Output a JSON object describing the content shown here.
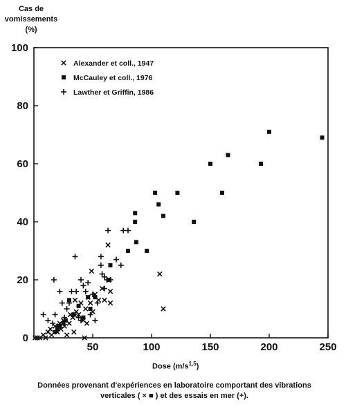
{
  "chart_data": {
    "type": "scatter",
    "ylabel_lines": [
      "Cas de",
      "vomissements",
      "(%)"
    ],
    "xlabel_main": "Dose (m/s",
    "xlabel_exp": "1,5",
    "xlabel_close": ")",
    "xlim": [
      0,
      250
    ],
    "ylim": [
      0,
      100
    ],
    "x_ticks": [
      "50",
      "100",
      "150",
      "200",
      "250"
    ],
    "y_ticks": [
      "0",
      "20",
      "40",
      "60",
      "80",
      "100"
    ],
    "legend_position": "top-left",
    "grid": false,
    "series": [
      {
        "name": "Alexander et coll., 1947",
        "marker": "x",
        "points": [
          [
            1,
            0
          ],
          [
            3,
            0
          ],
          [
            5,
            0
          ],
          [
            8,
            1
          ],
          [
            10,
            0
          ],
          [
            12,
            2
          ],
          [
            14,
            3
          ],
          [
            15,
            1
          ],
          [
            18,
            4
          ],
          [
            20,
            2
          ],
          [
            22,
            5
          ],
          [
            23,
            3
          ],
          [
            25,
            6
          ],
          [
            26,
            4
          ],
          [
            28,
            1
          ],
          [
            30,
            5
          ],
          [
            31,
            8
          ],
          [
            33,
            7
          ],
          [
            34,
            2
          ],
          [
            35,
            13
          ],
          [
            36,
            9
          ],
          [
            38,
            8
          ],
          [
            40,
            12
          ],
          [
            42,
            6
          ],
          [
            43,
            0
          ],
          [
            44,
            10
          ],
          [
            45,
            5
          ],
          [
            46,
            14
          ],
          [
            48,
            12
          ],
          [
            49,
            23
          ],
          [
            50,
            9
          ],
          [
            52,
            15
          ],
          [
            55,
            13
          ],
          [
            58,
            17
          ],
          [
            60,
            13
          ],
          [
            63,
            32
          ],
          [
            64,
            20
          ],
          [
            65,
            12
          ],
          [
            65,
            16
          ],
          [
            107,
            22
          ],
          [
            110,
            10
          ]
        ]
      },
      {
        "name": "McCauley et coll., 1976",
        "marker": "square",
        "points": [
          [
            18,
            2
          ],
          [
            20,
            3
          ],
          [
            22,
            4
          ],
          [
            25,
            5
          ],
          [
            27,
            6
          ],
          [
            30,
            13
          ],
          [
            34,
            8
          ],
          [
            38,
            11
          ],
          [
            42,
            7
          ],
          [
            46,
            14
          ],
          [
            48,
            10
          ],
          [
            52,
            14
          ],
          [
            64,
            20
          ],
          [
            65,
            25
          ],
          [
            80,
            30
          ],
          [
            86,
            40
          ],
          [
            86,
            43
          ],
          [
            87,
            33
          ],
          [
            96,
            30
          ],
          [
            103,
            50
          ],
          [
            106,
            46
          ],
          [
            110,
            42
          ],
          [
            122,
            50
          ],
          [
            136,
            40
          ],
          [
            150,
            60
          ],
          [
            160,
            50
          ],
          [
            165,
            63
          ],
          [
            193,
            60
          ],
          [
            200,
            71
          ],
          [
            245,
            69
          ]
        ]
      },
      {
        "name": "Lawther et Griffin, 1986",
        "marker": "plus",
        "points": [
          [
            8,
            8
          ],
          [
            12,
            6
          ],
          [
            16,
            5
          ],
          [
            17,
            20
          ],
          [
            18,
            8
          ],
          [
            20,
            4
          ],
          [
            22,
            16
          ],
          [
            24,
            12
          ],
          [
            26,
            7
          ],
          [
            28,
            10
          ],
          [
            30,
            12
          ],
          [
            32,
            16
          ],
          [
            34,
            8
          ],
          [
            35,
            28
          ],
          [
            36,
            16
          ],
          [
            38,
            7
          ],
          [
            40,
            20
          ],
          [
            40,
            6
          ],
          [
            42,
            18
          ],
          [
            44,
            16
          ],
          [
            46,
            19
          ],
          [
            48,
            8
          ],
          [
            50,
            15
          ],
          [
            52,
            6
          ],
          [
            54,
            12
          ],
          [
            57,
            28
          ],
          [
            57,
            25
          ],
          [
            58,
            22
          ],
          [
            60,
            21
          ],
          [
            60,
            17
          ],
          [
            62,
            20
          ],
          [
            63,
            37
          ],
          [
            65,
            20
          ],
          [
            70,
            27
          ],
          [
            74,
            25
          ],
          [
            76,
            37
          ],
          [
            80,
            37
          ]
        ]
      }
    ]
  },
  "caption": {
    "line1": "Données provenant d'expériences en laboratoire comportant des vibrations",
    "line2_before": "verticales (",
    "sym_x": "×",
    "sym_sq": "■",
    "line2_mid": ") et des essais en mer (",
    "sym_plus": "+",
    "line2_after": ")."
  }
}
